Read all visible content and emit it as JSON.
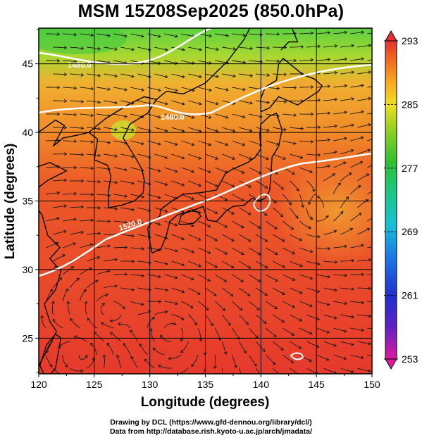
{
  "title": "MSM 15Z08Sep2025 (850.0hPa)",
  "x_axis": {
    "label": "Longitude (degrees)",
    "ticks": [
      "120",
      "125",
      "130",
      "135",
      "140",
      "145",
      "150"
    ],
    "range": [
      120,
      150
    ]
  },
  "y_axis": {
    "label": "Latitude  (degrees)",
    "ticks": [
      "25",
      "30",
      "35",
      "40",
      "45"
    ],
    "range": [
      22.4,
      47.6
    ]
  },
  "colorbar": {
    "ticks": [
      "293",
      "285",
      "277",
      "269",
      "261",
      "253"
    ],
    "range": [
      253,
      293
    ],
    "colors": [
      "#e0189c",
      "#3a1fd0",
      "#1a7fe8",
      "#17c8c8",
      "#18c870",
      "#40c020",
      "#a8d820",
      "#f0e020",
      "#f8a020",
      "#f06020",
      "#e83030"
    ]
  },
  "contours": [
    {
      "label": "1480.0"
    },
    {
      "label": "1480.0"
    },
    {
      "label": "1520.0"
    }
  ],
  "credit": {
    "line1": "Drawing by DCL (https://www.gfd-dennou.org/library/dcl/)",
    "line2": "Data from http://database.rish.kyoto-u.ac.jp/arch/jmadata/"
  },
  "colors": {
    "field_high": "#e83a2a",
    "field_mid": "#f07a20",
    "field_warm": "#f0a030",
    "field_green": "#60d030",
    "contour": "#ffffff",
    "coast": "#000000"
  }
}
